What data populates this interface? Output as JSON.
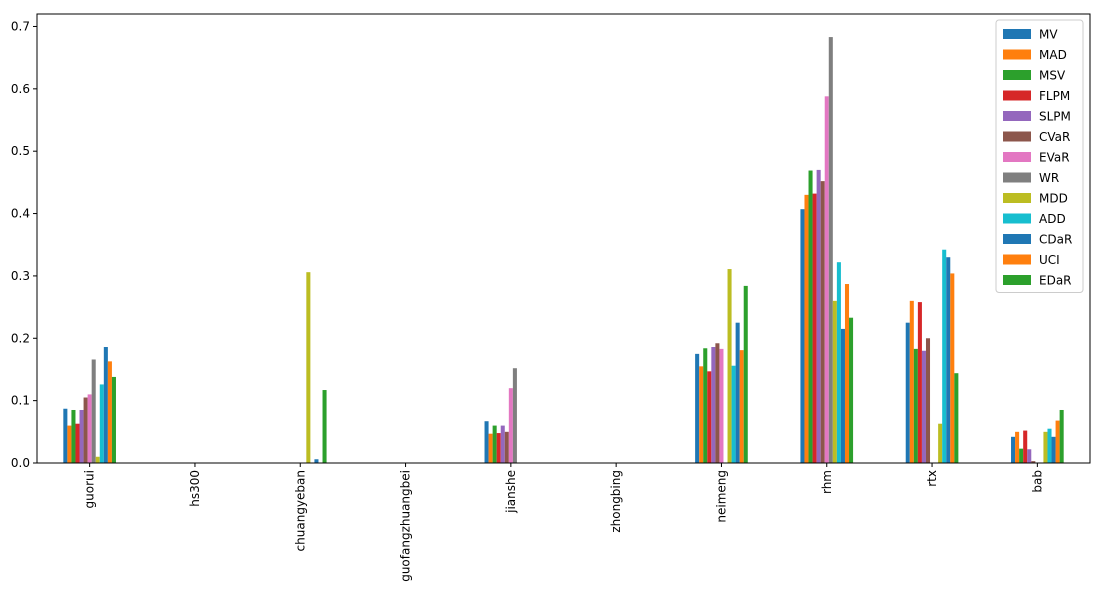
{
  "chart_data": {
    "type": "bar",
    "title": "",
    "xlabel": "",
    "ylabel": "",
    "ylim": [
      0,
      0.72
    ],
    "yticks": [
      0.0,
      0.1,
      0.2,
      0.3,
      0.4,
      0.5,
      0.6,
      0.7
    ],
    "ytick_labels": [
      "0.0",
      "0.1",
      "0.2",
      "0.3",
      "0.4",
      "0.5",
      "0.6",
      "0.7"
    ],
    "grid": false,
    "legend_position": "top-right",
    "categories": [
      "guorui",
      "hs300",
      "chuangyeban",
      "guofangzhuangbei",
      "jianshe",
      "zhongbing",
      "neimeng",
      "rhm",
      "rtx",
      "bab"
    ],
    "series": [
      {
        "name": "MV",
        "color": "#1f77b4",
        "values": [
          0.087,
          0,
          0,
          0,
          0.067,
          0,
          0.175,
          0.407,
          0.225,
          0.042
        ]
      },
      {
        "name": "MAD",
        "color": "#ff7f0e",
        "values": [
          0.06,
          0,
          0,
          0,
          0.047,
          0,
          0.155,
          0.43,
          0.26,
          0.05
        ]
      },
      {
        "name": "MSV",
        "color": "#2ca02c",
        "values": [
          0.085,
          0,
          0,
          0,
          0.06,
          0,
          0.184,
          0.469,
          0.183,
          0.023
        ]
      },
      {
        "name": "FLPM",
        "color": "#d62728",
        "values": [
          0.063,
          0,
          0,
          0,
          0.048,
          0,
          0.147,
          0.432,
          0.258,
          0.052
        ]
      },
      {
        "name": "SLPM",
        "color": "#9467bd",
        "values": [
          0.085,
          0,
          0,
          0,
          0.06,
          0,
          0.186,
          0.47,
          0.18,
          0.022
        ]
      },
      {
        "name": "CVaR",
        "color": "#8c564b",
        "values": [
          0.105,
          0,
          0,
          0,
          0.05,
          0,
          0.192,
          0.452,
          0.2,
          0.003
        ]
      },
      {
        "name": "EVaR",
        "color": "#e377c2",
        "values": [
          0.11,
          0,
          0,
          0,
          0.12,
          0,
          0.183,
          0.588,
          0,
          0
        ]
      },
      {
        "name": "WR",
        "color": "#7f7f7f",
        "values": [
          0.166,
          0,
          0,
          0,
          0.152,
          0,
          0,
          0.683,
          0,
          0
        ]
      },
      {
        "name": "MDD",
        "color": "#bcbd22",
        "values": [
          0.01,
          0,
          0.306,
          0,
          0,
          0,
          0.311,
          0.26,
          0.063,
          0.05
        ]
      },
      {
        "name": "ADD",
        "color": "#17becf",
        "values": [
          0.126,
          0,
          0,
          0,
          0,
          0,
          0.156,
          0.322,
          0.342,
          0.055
        ]
      },
      {
        "name": "CDaR",
        "color": "#1f77b4",
        "values": [
          0.186,
          0,
          0.006,
          0,
          0,
          0,
          0.225,
          0.215,
          0.33,
          0.042
        ]
      },
      {
        "name": "UCI",
        "color": "#ff7f0e",
        "values": [
          0.163,
          0,
          0,
          0,
          0,
          0,
          0.181,
          0.287,
          0.304,
          0.068
        ]
      },
      {
        "name": "EDaR",
        "color": "#2ca02c",
        "values": [
          0.138,
          0,
          0.117,
          0,
          0,
          0,
          0.284,
          0.233,
          0.144,
          0.085
        ]
      }
    ]
  }
}
